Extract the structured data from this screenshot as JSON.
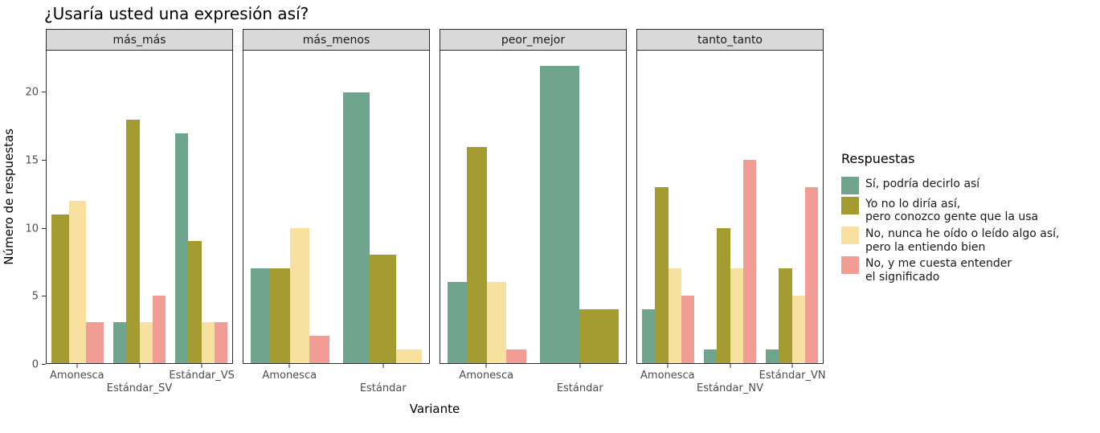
{
  "title": "¿Usaría usted una expresión así?",
  "chart_data": {
    "type": "bar",
    "title": "¿Usaría usted una expresión así?",
    "xlabel": "Variante",
    "ylabel": "Número de respuestas",
    "legend_title": "Respuestas",
    "ylim": [
      0,
      23.1
    ],
    "yticks": [
      0,
      5,
      10,
      15,
      20
    ],
    "grid": "off",
    "legend_position": "right",
    "series": [
      {
        "name": "Sí, podría decirlo así",
        "color": "#6EA58C"
      },
      {
        "name": "Yo no lo diría así,\npero conozco gente que la usa",
        "color": "#A49B31"
      },
      {
        "name": "No, nunca he oído o leído algo así,\npero la entiendo bien",
        "color": "#F8E0A1"
      },
      {
        "name": "No, y me cuesta entender\nel significado",
        "color": "#F19C94"
      }
    ],
    "facets": [
      {
        "label": "más_más",
        "groups": [
          {
            "label": "Amonesca",
            "row": 0,
            "values": [
              null,
              11,
              12,
              3
            ]
          },
          {
            "label": "Estándar_SV",
            "row": 1,
            "values": [
              3,
              18,
              3,
              5
            ]
          },
          {
            "label": "Estándar_VS",
            "row": 0,
            "values": [
              17,
              9,
              3,
              3
            ]
          }
        ]
      },
      {
        "label": "más_menos",
        "groups": [
          {
            "label": "Amonesca",
            "row": 0,
            "values": [
              7,
              7,
              10,
              2
            ]
          },
          {
            "label": "Estándar",
            "row": 1,
            "values": [
              20,
              8,
              1,
              null
            ]
          }
        ]
      },
      {
        "label": "peor_mejor",
        "groups": [
          {
            "label": "Amonesca",
            "row": 0,
            "values": [
              6,
              16,
              6,
              1
            ]
          },
          {
            "label": "Estándar",
            "row": 1,
            "values": [
              22,
              4,
              null,
              null
            ]
          }
        ]
      },
      {
        "label": "tanto_tanto",
        "groups": [
          {
            "label": "Amonesca",
            "row": 0,
            "values": [
              4,
              13,
              7,
              5
            ]
          },
          {
            "label": "Estándar_NV",
            "row": 1,
            "values": [
              1,
              10,
              7,
              15
            ]
          },
          {
            "label": "Estándar_VN",
            "row": 0,
            "values": [
              1,
              7,
              5,
              13
            ]
          }
        ]
      }
    ]
  }
}
